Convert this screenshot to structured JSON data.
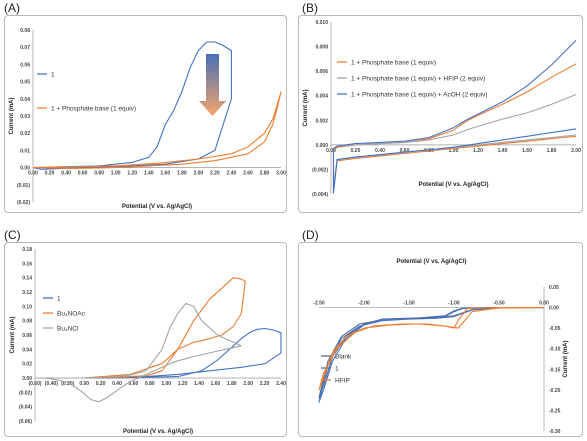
{
  "panels": [
    {
      "label": "(A)"
    },
    {
      "label": "(B)"
    },
    {
      "label": "(C)"
    },
    {
      "label": "(D)"
    }
  ],
  "chart_data": [
    {
      "id": "A",
      "type": "line",
      "xlabel": "Potential  (V vs. Ag/AgCl)",
      "ylabel": "Current (mA)",
      "xlim": [
        0,
        3.0
      ],
      "ylim": [
        -0.02,
        0.08
      ],
      "xticks": [
        "0.00",
        "0.20",
        "0.40",
        "0.60",
        "0.80",
        "1.00",
        "1.20",
        "1.40",
        "1.60",
        "1.80",
        "2.00",
        "2.20",
        "2.40",
        "2.60",
        "2.80",
        "3.00"
      ],
      "yticks": [
        "(0.02)",
        "(0.01)",
        "0.00",
        "0.01",
        "0.02",
        "0.03",
        "0.04",
        "0.05",
        "0.06",
        "0.07",
        "0.08"
      ],
      "ytick_values": [
        -0.02,
        -0.01,
        0,
        0.01,
        0.02,
        0.03,
        0.04,
        0.05,
        0.06,
        0.07,
        0.08
      ],
      "legend_position": "left",
      "series": [
        {
          "name": "1",
          "color": "#4472c4",
          "x": [
            0,
            0.4,
            0.8,
            1.2,
            1.4,
            1.5,
            1.6,
            1.7,
            1.8,
            1.9,
            2.0,
            2.1,
            2.2,
            2.3,
            2.4,
            2.4,
            2.2,
            2.0,
            1.6,
            1.2,
            0.6,
            0.1,
            0
          ],
          "y": [
            0,
            0.0005,
            0.001,
            0.003,
            0.006,
            0.012,
            0.025,
            0.033,
            0.044,
            0.058,
            0.068,
            0.073,
            0.073,
            0.071,
            0.068,
            0.04,
            0.01,
            0.005,
            0.002,
            0.001,
            0,
            -0.001,
            0
          ]
        },
        {
          "name": "1 + Phosphate base (1 equiv)",
          "color": "#ed7d31",
          "x": [
            0,
            0.5,
            1.0,
            1.5,
            2.0,
            2.4,
            2.6,
            2.8,
            2.9,
            2.95,
            3.0,
            2.95,
            2.9,
            2.8,
            2.6,
            2.2,
            1.8,
            1.4,
            1.0,
            0.5,
            0
          ],
          "y": [
            0,
            0.0005,
            0.001,
            0.0025,
            0.005,
            0.008,
            0.012,
            0.02,
            0.028,
            0.036,
            0.044,
            0.034,
            0.025,
            0.015,
            0.008,
            0.004,
            0.002,
            0.001,
            0,
            -0.0005,
            0
          ]
        }
      ]
    },
    {
      "id": "B",
      "type": "line",
      "xlabel": "Potential  (V vs. Ag/AgCl)",
      "ylabel": "Current (mA)",
      "xlim": [
        0,
        2.0
      ],
      "ylim": [
        -0.004,
        0.01
      ],
      "xticks": [
        "0.00",
        "0.20",
        "0.40",
        "0.60",
        "0.80",
        "1.00",
        "1.20",
        "1.40",
        "1.60",
        "1.80",
        "2.00"
      ],
      "yticks": [
        "(0.004)",
        "(0.002)",
        "0.000",
        "0.002",
        "0.004",
        "0.006",
        "0.008",
        "0.010"
      ],
      "ytick_values": [
        -0.004,
        -0.002,
        0,
        0.002,
        0.004,
        0.006,
        0.008,
        0.01
      ],
      "legend_position": "top-left",
      "series": [
        {
          "name": "1 + Phosphate base (1 equiv)",
          "color": "#ed7d31",
          "x": [
            2.0,
            1.8,
            1.6,
            1.4,
            1.2,
            1.1,
            1.0,
            0.8,
            0.6,
            0.4,
            0.2,
            0.05,
            0.02,
            0.02,
            0.05,
            0.2,
            0.4,
            0.6,
            0.8,
            1.0,
            1.2,
            1.4,
            1.6,
            1.8,
            1.9,
            2.0
          ],
          "y": [
            0.0066,
            0.0055,
            0.0043,
            0.0033,
            0.0024,
            0.0019,
            0.0012,
            0.0005,
            0.0002,
            0.0001,
            0.0,
            -0.0002,
            -0.0005,
            -0.0038,
            -0.0013,
            -0.0011,
            -0.0009,
            -0.0007,
            -0.0005,
            -0.0003,
            -0.0001,
            0.0001,
            0.0003,
            0.0005,
            0.0006,
            0.0007
          ]
        },
        {
          "name": "1 + Phosphate base (1 equiv) + HFIP (2 equiv)",
          "color": "#a5a5a5",
          "x": [
            2.0,
            1.8,
            1.6,
            1.4,
            1.2,
            1.1,
            1.0,
            0.8,
            0.6,
            0.4,
            0.2,
            0.05,
            0.02,
            0.02,
            0.05,
            0.2,
            0.4,
            0.6,
            0.8,
            1.0,
            1.2,
            1.4,
            1.6,
            1.8,
            2.0
          ],
          "y": [
            0.0041,
            0.0033,
            0.0026,
            0.0021,
            0.0015,
            0.0012,
            0.0008,
            0.0004,
            0.0002,
            0.0001,
            0.0,
            -0.0001,
            -0.0004,
            -0.0034,
            -0.0012,
            -0.001,
            -0.0008,
            -0.0006,
            -0.0004,
            -0.0002,
            0.0,
            0.0002,
            0.0004,
            0.0006,
            0.0008
          ]
        },
        {
          "name": "1 + Phosphate base (1 equiv) + AcOH (2 equiv)",
          "color": "#4472c4",
          "x": [
            2.0,
            1.8,
            1.6,
            1.4,
            1.2,
            1.1,
            1.0,
            0.8,
            0.6,
            0.4,
            0.2,
            0.05,
            0.02,
            0.02,
            0.05,
            0.2,
            0.4,
            0.6,
            0.8,
            1.0,
            1.2,
            1.4,
            1.6,
            1.8,
            2.0
          ],
          "y": [
            0.0085,
            0.0065,
            0.0048,
            0.0035,
            0.0025,
            0.002,
            0.0014,
            0.0006,
            0.0003,
            0.0002,
            0.0001,
            -0.0001,
            -0.0003,
            -0.0039,
            -0.0012,
            -0.001,
            -0.0008,
            -0.0006,
            -0.0004,
            -0.0002,
            0.0001,
            0.0004,
            0.0007,
            0.001,
            0.0013
          ]
        }
      ]
    },
    {
      "id": "C",
      "type": "line",
      "xlabel": "Potential  (V vs. Ag/AgCl)",
      "ylabel": "Current (mA)",
      "xlim": [
        -0.6,
        2.5
      ],
      "ylim": [
        -0.06,
        0.18
      ],
      "xticks": [
        "(0.60)",
        "(0.40)",
        "(0.20)",
        "0.00",
        "0.20",
        "0.40",
        "0.60",
        "0.80",
        "1.00",
        "1.20",
        "1.40",
        "1.60",
        "1.80",
        "2.00",
        "2.20",
        "2.40"
      ],
      "yticks": [
        "(0.06)",
        "(0.04)",
        "(0.02)",
        "0.00",
        "0.02",
        "0.04",
        "0.06",
        "0.08",
        "0.10",
        "0.12",
        "0.14",
        "0.16",
        "0.18"
      ],
      "ytick_values": [
        -0.06,
        -0.04,
        -0.02,
        0,
        0.02,
        0.04,
        0.06,
        0.08,
        0.1,
        0.12,
        0.14,
        0.16,
        0.18
      ],
      "legend_position": "left",
      "series": [
        {
          "name": "1",
          "color": "#4472c4",
          "x": [
            0.0,
            0.6,
            1.2,
            1.5,
            1.7,
            1.9,
            2.0,
            2.1,
            2.2,
            2.3,
            2.4,
            2.5,
            2.5,
            2.3,
            2.0,
            1.6,
            1.2,
            0.8,
            0.3,
            0.0
          ],
          "y": [
            0,
            0.0005,
            0.002,
            0.01,
            0.025,
            0.045,
            0.055,
            0.063,
            0.068,
            0.069,
            0.067,
            0.063,
            0.035,
            0.02,
            0.015,
            0.01,
            0.005,
            0.002,
            0,
            0
          ]
        },
        {
          "name": "Bu₄NOAc",
          "color": "#ed7d31",
          "x": [
            0.0,
            0.4,
            0.8,
            1.0,
            1.2,
            1.4,
            1.6,
            1.8,
            1.9,
            2.0,
            2.05,
            2.0,
            1.9,
            1.75,
            1.6,
            1.5,
            1.4,
            1.2,
            1.0,
            0.6,
            0.0
          ],
          "y": [
            0,
            0.001,
            0.003,
            0.01,
            0.04,
            0.08,
            0.11,
            0.13,
            0.14,
            0.138,
            0.135,
            0.09,
            0.072,
            0.06,
            0.055,
            0.052,
            0.05,
            0.04,
            0.02,
            0.005,
            0
          ]
        },
        {
          "name": "Bu₄NCl",
          "color": "#a5a5a5",
          "x": [
            2.0,
            1.8,
            1.6,
            1.4,
            1.3,
            1.2,
            1.1,
            1.0,
            0.9,
            0.8,
            0.7,
            0.6,
            0.5,
            0.4,
            0.3,
            0.2,
            0.1,
            0.0,
            -0.1,
            -0.2,
            -0.3,
            -0.4,
            -0.5,
            -0.6,
            -0.5,
            -0.4,
            -0.3,
            -0.2,
            -0.1,
            0.0,
            0.2,
            0.4,
            0.6,
            0.8,
            1.0,
            1.1,
            1.2,
            1.3,
            1.4,
            1.5,
            1.7,
            2.0
          ],
          "y": [
            0.045,
            0.04,
            0.035,
            0.03,
            0.027,
            0.024,
            0.02,
            0.015,
            0.01,
            0.005,
            0.0,
            -0.005,
            -0.012,
            -0.02,
            -0.028,
            -0.033,
            -0.03,
            -0.02,
            -0.012,
            -0.006,
            -0.003,
            -0.001,
            0.0,
            0.0,
            0.0,
            0.0,
            0.0,
            0.0,
            0.0,
            0.0,
            0.001,
            0.002,
            0.004,
            0.01,
            0.04,
            0.07,
            0.09,
            0.104,
            0.1,
            0.08,
            0.06,
            0.045
          ]
        }
      ]
    },
    {
      "id": "D",
      "type": "line",
      "xlabel": "Potential (V vs. Ag/AgCl)",
      "ylabel": "Current (mA)",
      "xlim": [
        -2.5,
        0
      ],
      "ylim": [
        -0.3,
        0.05
      ],
      "xticks": [
        "-2.50",
        "-2.00",
        "-1.50",
        "-1.00",
        "-0.50",
        "0.00"
      ],
      "xtick_values": [
        -2.5,
        -2.0,
        -1.5,
        -1.0,
        -0.5,
        0.0
      ],
      "yticks": [
        "0.05",
        "0.00",
        "-0.05",
        "-0.10",
        "-0.15",
        "-0.20",
        "-0.25",
        "-0.30"
      ],
      "ytick_values": [
        0.05,
        0,
        -0.05,
        -0.1,
        -0.15,
        -0.2,
        -0.25,
        -0.3
      ],
      "legend_position": "bottom-left",
      "series": [
        {
          "name": "Blank",
          "color": "#5b6e8f",
          "x": [
            0,
            -0.5,
            -0.9,
            -1.0,
            -1.1,
            -1.4,
            -1.8,
            -2.0,
            -2.2,
            -2.35,
            -2.45,
            -2.5,
            -2.48,
            -2.4,
            -2.25,
            -2.05,
            -1.8,
            -1.5,
            -1.2,
            -1.0,
            -0.8,
            -0.5,
            0
          ],
          "y": [
            0,
            0,
            -0.001,
            -0.008,
            -0.02,
            -0.025,
            -0.028,
            -0.04,
            -0.07,
            -0.12,
            -0.19,
            -0.22,
            -0.2,
            -0.13,
            -0.07,
            -0.04,
            -0.03,
            -0.027,
            -0.025,
            -0.02,
            -0.005,
            -0.001,
            0
          ]
        },
        {
          "name": "1",
          "color": "#4472c4",
          "x": [
            0,
            -0.5,
            -0.9,
            -1.0,
            -1.1,
            -1.4,
            -1.8,
            -2.0,
            -2.2,
            -2.35,
            -2.45,
            -2.5,
            -2.48,
            -2.4,
            -2.25,
            -2.05,
            -1.8,
            -1.5,
            -1.2,
            -1.0,
            -0.8,
            -0.5,
            0
          ],
          "y": [
            0,
            0,
            -0.002,
            -0.01,
            -0.022,
            -0.027,
            -0.03,
            -0.042,
            -0.075,
            -0.13,
            -0.2,
            -0.23,
            -0.21,
            -0.14,
            -0.075,
            -0.045,
            -0.032,
            -0.028,
            -0.026,
            -0.022,
            -0.006,
            -0.001,
            0
          ]
        },
        {
          "name": "HFIP",
          "color": "#ed7d31",
          "x": [
            0,
            -0.5,
            -0.85,
            -0.95,
            -1.0,
            -1.1,
            -1.3,
            -1.6,
            -1.9,
            -2.1,
            -2.3,
            -2.45,
            -2.5,
            -2.45,
            -2.35,
            -2.2,
            -2.0,
            -1.7,
            -1.4,
            -1.1,
            -0.95,
            -0.8,
            -0.5,
            0
          ],
          "y": [
            0,
            0,
            -0.002,
            -0.03,
            -0.05,
            -0.045,
            -0.04,
            -0.04,
            -0.045,
            -0.06,
            -0.1,
            -0.16,
            -0.2,
            -0.17,
            -0.11,
            -0.07,
            -0.05,
            -0.042,
            -0.04,
            -0.045,
            -0.05,
            -0.01,
            -0.001,
            0
          ]
        }
      ]
    }
  ]
}
